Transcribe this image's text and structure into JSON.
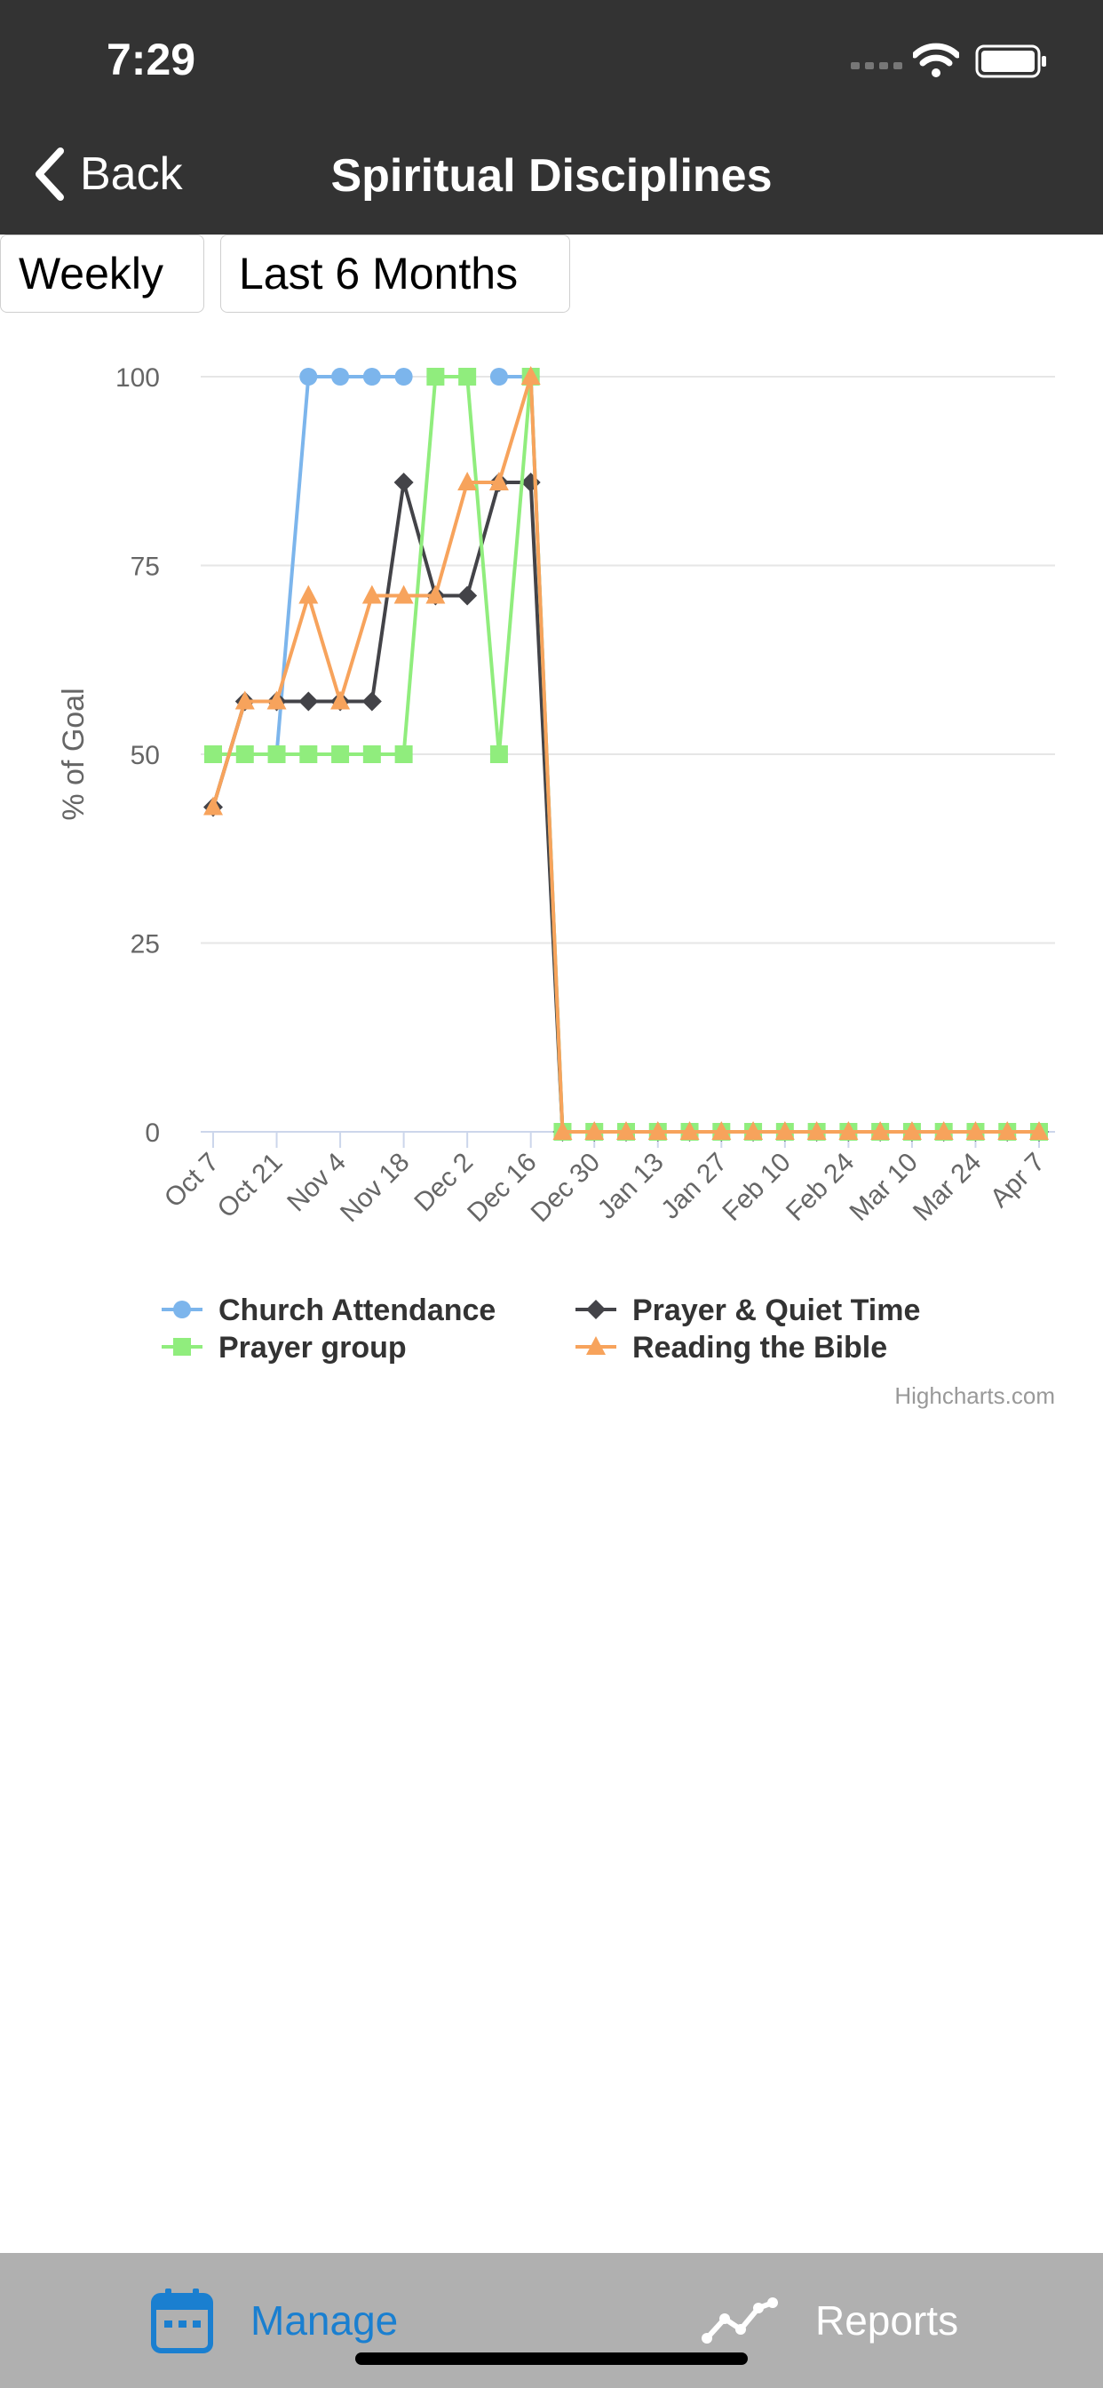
{
  "status": {
    "time": "7:29"
  },
  "nav": {
    "back_label": "Back",
    "title": "Spiritual Disciplines"
  },
  "filters": {
    "period": "Weekly",
    "range": "Last 6 Months"
  },
  "tabs": [
    {
      "label": "Manage",
      "icon": "calendar-icon",
      "active": true
    },
    {
      "label": "Reports",
      "icon": "line-chart-icon",
      "active": false
    }
  ],
  "chart_data": {
    "type": "line",
    "title": "",
    "xlabel": "",
    "ylabel": "% of Goal",
    "ylim": [
      0,
      100
    ],
    "yticks": [
      0,
      25,
      50,
      75,
      100
    ],
    "x_tick_labels": [
      "Oct 7",
      "Oct 21",
      "Nov 4",
      "Nov 18",
      "Dec 2",
      "Dec 16",
      "Dec 30",
      "Jan 13",
      "Jan 27",
      "Feb 10",
      "Feb 24",
      "Mar 10",
      "Mar 24",
      "Apr 7"
    ],
    "categories": [
      "Oct 7",
      "Oct 14",
      "Oct 21",
      "Oct 28",
      "Nov 4",
      "Nov 11",
      "Nov 18",
      "Nov 25",
      "Dec 2",
      "Dec 9",
      "Dec 16",
      "Dec 23",
      "Dec 30",
      "Jan 6",
      "Jan 13",
      "Jan 20",
      "Jan 27",
      "Feb 3",
      "Feb 10",
      "Feb 17",
      "Feb 24",
      "Mar 3",
      "Mar 10",
      "Mar 17",
      "Mar 24",
      "Mar 31",
      "Apr 7"
    ],
    "grid": true,
    "legend_position": "bottom",
    "credit": "Highcharts.com",
    "series": [
      {
        "name": "Church Attendance",
        "color": "#7cb5ec",
        "marker": "circle",
        "values": [
          null,
          null,
          50,
          100,
          100,
          100,
          100,
          null,
          null,
          100,
          100,
          0,
          0,
          0,
          0,
          0,
          0,
          0,
          0,
          0,
          0,
          0,
          0,
          0,
          0,
          0,
          0
        ]
      },
      {
        "name": "Prayer & Quiet Time",
        "color": "#434348",
        "marker": "diamond",
        "values": [
          43,
          57,
          57,
          57,
          57,
          57,
          86,
          71,
          71,
          86,
          86,
          0,
          0,
          0,
          0,
          0,
          0,
          0,
          0,
          0,
          0,
          0,
          0,
          0,
          0,
          0,
          0
        ]
      },
      {
        "name": "Prayer group",
        "color": "#90ed7d",
        "marker": "square",
        "values": [
          50,
          50,
          50,
          50,
          50,
          50,
          50,
          100,
          100,
          50,
          100,
          0,
          0,
          0,
          0,
          0,
          0,
          0,
          0,
          0,
          0,
          0,
          0,
          0,
          0,
          0,
          0
        ]
      },
      {
        "name": "Reading the Bible",
        "color": "#f7a35c",
        "marker": "triangle",
        "values": [
          43,
          57,
          57,
          71,
          57,
          71,
          71,
          71,
          86,
          86,
          100,
          0,
          0,
          0,
          0,
          0,
          0,
          0,
          0,
          0,
          0,
          0,
          0,
          0,
          0,
          0,
          0
        ]
      }
    ]
  }
}
